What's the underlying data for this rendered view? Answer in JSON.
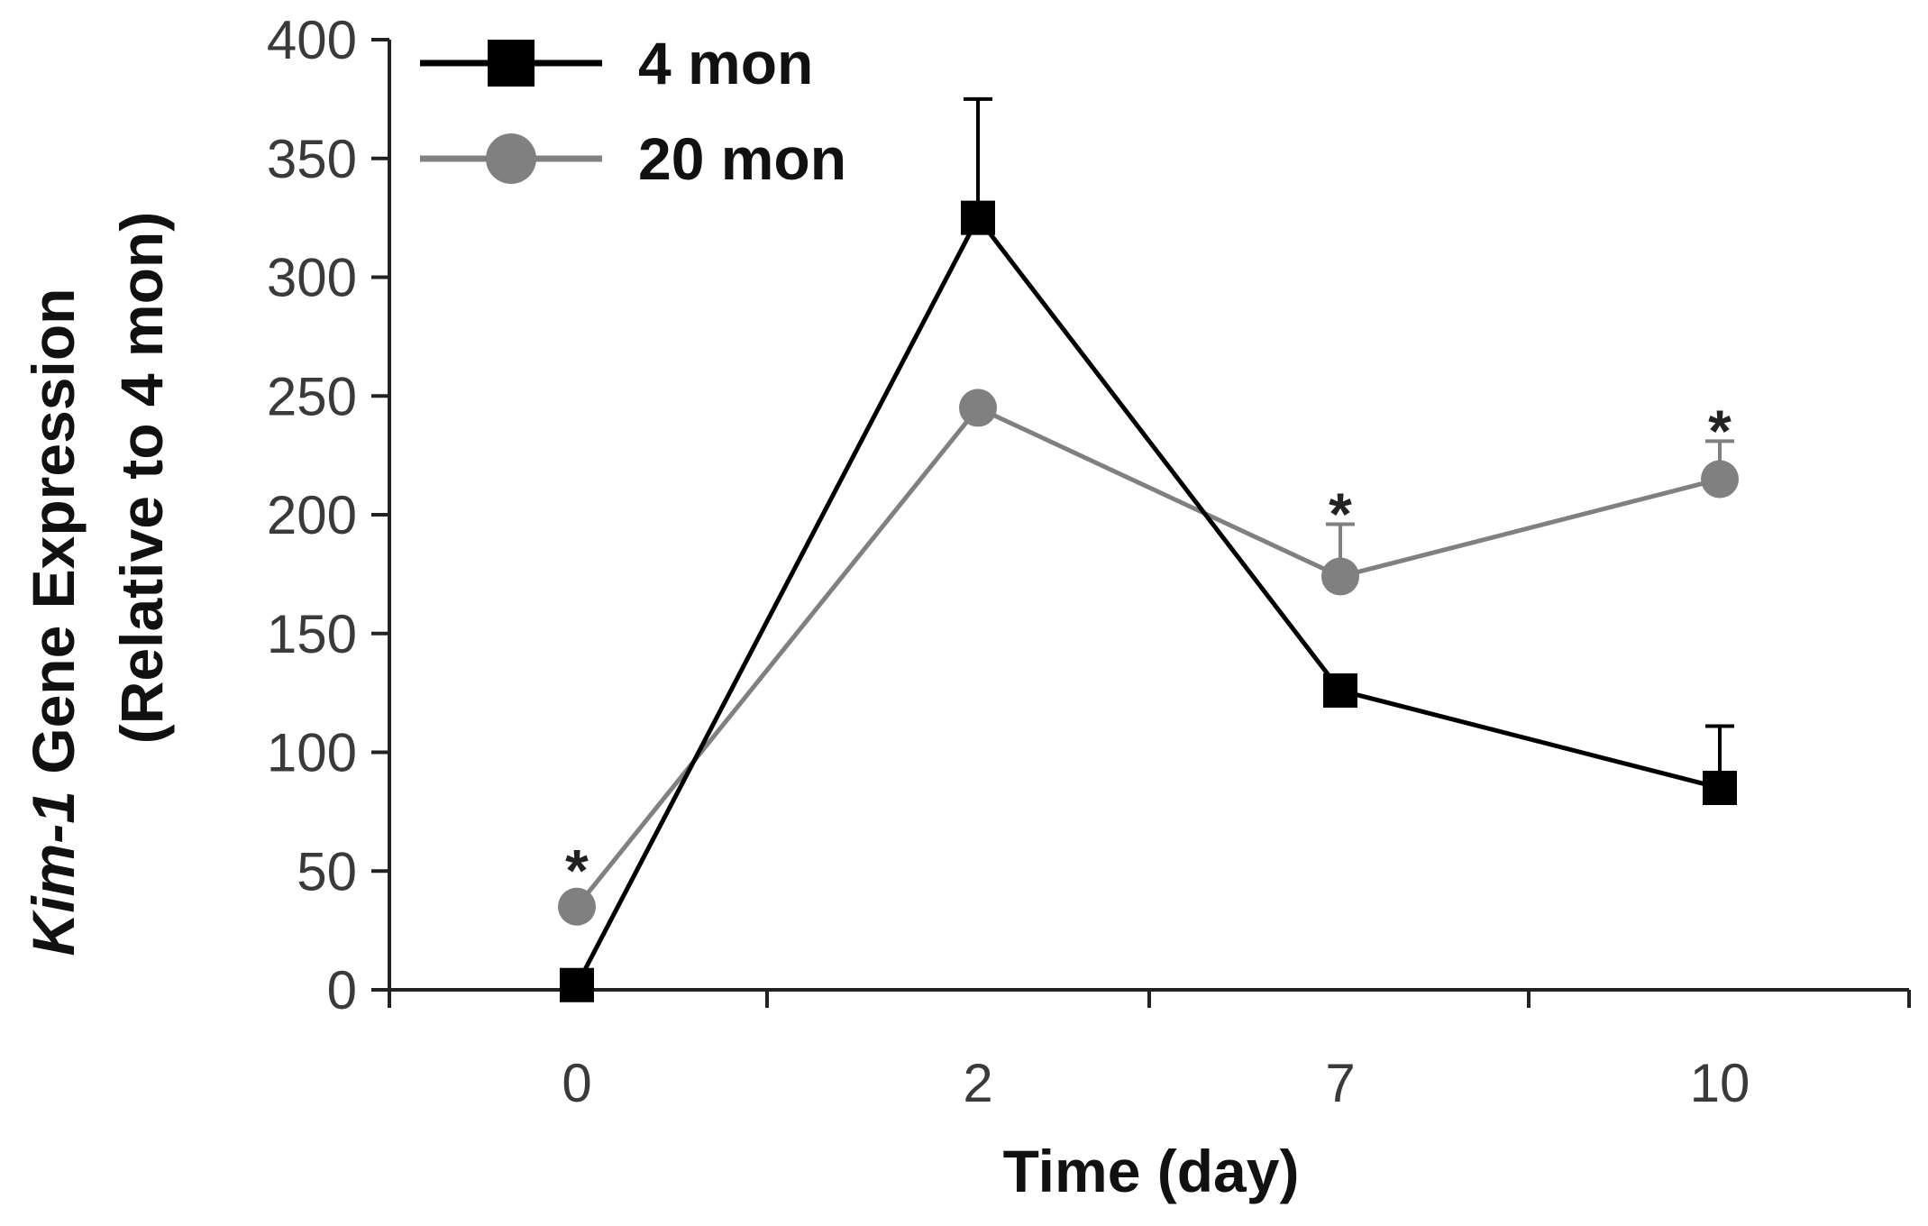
{
  "chart_data": {
    "type": "line",
    "title": "",
    "xlabel": "Time (day)",
    "ylabel_italic": "Kim-1",
    "ylabel_rest": " Gene Expression",
    "ylabel_line2": "(Relative to 4 mon)",
    "categories": [
      "0",
      "2",
      "7",
      "10"
    ],
    "ylim": [
      0,
      400
    ],
    "yticks": [
      0,
      50,
      100,
      150,
      200,
      250,
      300,
      350,
      400
    ],
    "grid": false,
    "legend_position": "top-left",
    "series": [
      {
        "name": "4 mon",
        "marker": "square",
        "color": "#000000",
        "values": [
          2,
          325,
          126,
          85
        ],
        "error_upper": [
          0,
          50,
          0,
          26
        ]
      },
      {
        "name": "20 mon",
        "marker": "circle",
        "color": "#808080",
        "values": [
          35,
          245,
          174,
          215
        ],
        "error_upper": [
          0,
          0,
          22,
          16
        ]
      }
    ],
    "annotations": [
      {
        "text": "*",
        "category": "0",
        "value": 53
      },
      {
        "text": "*",
        "category": "7",
        "value": 203
      },
      {
        "text": "*",
        "category": "10",
        "value": 238
      }
    ]
  }
}
